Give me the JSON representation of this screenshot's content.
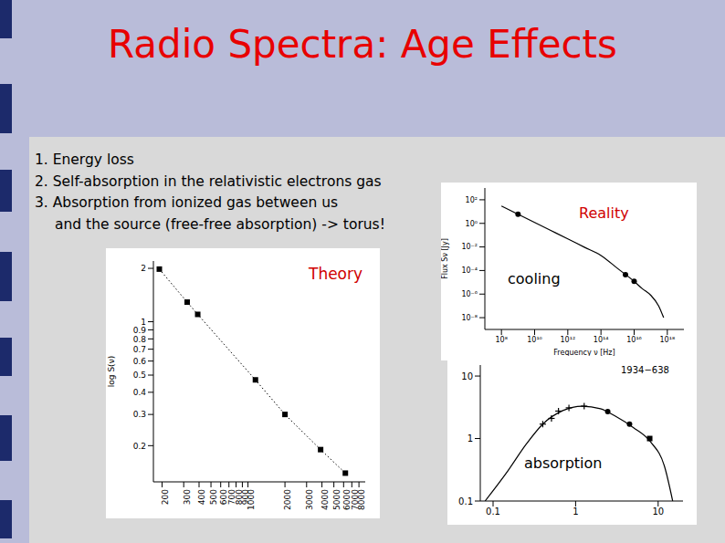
{
  "title": "Radio Spectra: Age Effects",
  "lines": [
    "1. Energy loss",
    "2. Self-absorption in the relativistic electrons gas",
    "3. Absorption from ionized gas between us",
    "and the source (free-free absorption) -> torus!"
  ],
  "chart_data": [
    {
      "type": "line",
      "annotations": [
        "Theory"
      ],
      "ylabel": "log S(ν)",
      "log": true,
      "xlim": [
        170,
        9000
      ],
      "xticks": [
        200,
        300,
        400,
        500,
        600,
        700,
        800,
        900,
        1000,
        2000,
        3000,
        4000,
        5000,
        6000,
        7000,
        8000
      ],
      "ylim": [
        0.125,
        2.2
      ],
      "yticks": [
        0.2,
        0.3,
        0.4,
        0.5,
        0.6,
        0.7,
        0.8,
        0.9,
        1,
        2
      ],
      "series": [
        {
          "type": "line",
          "color": "#000000",
          "marker": "square",
          "line_style": "dotted",
          "x": [
            190,
            320,
            390,
            1150,
            2000,
            3900,
            6200
          ],
          "values": [
            1.98,
            1.29,
            1.1,
            0.47,
            0.3,
            0.19,
            0.14
          ]
        }
      ]
    },
    {
      "type": "line",
      "annotations": [
        "Reality",
        "cooling"
      ],
      "xlabel": "Frequency ν [Hz]",
      "ylabel": "Flux Sν [Jy]",
      "log": true,
      "xlim": [
        10000000.0,
        1e+19
      ],
      "xticks": [
        {
          "value": 100000000.0,
          "label": "10⁸"
        },
        {
          "value": 10000000000.0,
          "label": "10¹⁰"
        },
        {
          "value": 1000000000000.0,
          "label": "10¹²"
        },
        {
          "value": 100000000000000.0,
          "label": "10¹⁴"
        },
        {
          "value": 1e+16,
          "label": "10¹⁶"
        },
        {
          "value": 1e+18,
          "label": "10¹⁸"
        }
      ],
      "ylim": [
        1e-09,
        1000.0
      ],
      "yticks": [
        {
          "value": 100,
          "label": "10²"
        },
        {
          "value": 1,
          "label": "10⁰"
        },
        {
          "value": 0.01,
          "label": "10⁻²"
        },
        {
          "value": 0.0001,
          "label": "10⁻⁴"
        },
        {
          "value": 1e-06,
          "label": "10⁻⁶"
        },
        {
          "value": 1e-08,
          "label": "10⁻⁸"
        }
      ],
      "series": [
        {
          "type": "line",
          "color": "#000000",
          "x": [
            100000000.0,
            1000000000.0,
            10000000000.0,
            100000000000.0,
            1000000000000.0,
            10000000000000.0,
            100000000000000.0,
            1000000000000000.0,
            1e+16,
            3e+16,
            1e+17,
            3e+17,
            6e+17
          ],
          "values": [
            30,
            6,
            1.2,
            0.24,
            0.048,
            0.0095,
            0.0019,
            0.00015,
            1.2e-05,
            3e-06,
            8e-07,
            1e-07,
            1e-08
          ]
        },
        {
          "type": "scatter",
          "marker": "circle",
          "color": "#000000",
          "x": [
            1000000000.0,
            3000000000000000.0,
            1e+16
          ],
          "values": [
            6,
            4.5e-05,
            1.2e-05
          ]
        }
      ]
    },
    {
      "type": "scatter",
      "title": "1934−638",
      "annotations": [
        "absorption"
      ],
      "log": true,
      "xlim": [
        0.07,
        20
      ],
      "xticks": [
        0.1,
        1,
        10
      ],
      "ylim": [
        0.1,
        15
      ],
      "yticks": [
        0.1,
        1,
        10
      ],
      "series": [
        {
          "type": "line",
          "color": "#000000",
          "x": [
            0.08,
            0.15,
            0.25,
            0.4,
            0.7,
            1.2,
            2,
            3,
            5,
            8,
            12,
            15
          ],
          "values": [
            0.1,
            0.3,
            0.8,
            1.7,
            2.8,
            3.3,
            3.0,
            2.3,
            1.5,
            0.9,
            0.35,
            0.1
          ]
        },
        {
          "type": "scatter",
          "marker": "plus",
          "color": "#000000",
          "x": [
            0.4,
            0.51,
            0.62,
            0.83,
            1.27
          ],
          "values": [
            1.7,
            2.1,
            2.75,
            3.1,
            3.3
          ]
        },
        {
          "type": "scatter",
          "marker": "circle",
          "color": "#000000",
          "x": [
            2.45,
            4.5
          ],
          "values": [
            2.7,
            1.7
          ]
        },
        {
          "type": "scatter",
          "marker": "square",
          "color": "#000000",
          "x": [
            7.9
          ],
          "values": [
            1.0
          ]
        }
      ]
    }
  ]
}
